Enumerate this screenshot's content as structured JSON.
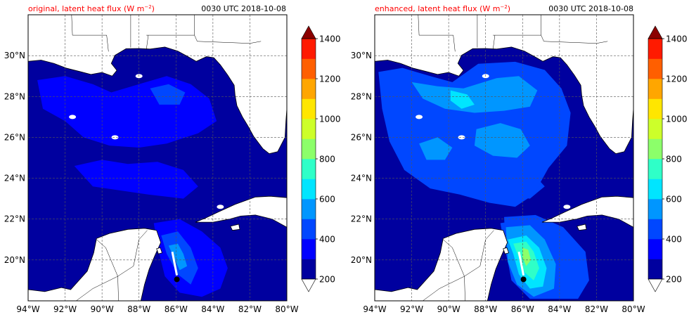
{
  "colors": {
    "levels": [
      "#00009f",
      "#0000ff",
      "#0047ff",
      "#0096ff",
      "#00e5ff",
      "#2fffc8",
      "#8cff6a",
      "#cdff2a",
      "#ffe600",
      "#ffa600",
      "#ff5f00",
      "#ff1a00",
      "#b40000"
    ],
    "over": "#8b0000",
    "title_red": "#ff0000",
    "land": "#ffffff",
    "coast": "#000000",
    "grid": "#555555"
  },
  "panels": [
    {
      "id": "original",
      "title_main": "original, latent heat flux (W m",
      "title_sup": "−2",
      "title_close": ")",
      "time_label": "0030 UTC 2018-10-08",
      "enhanced": false
    },
    {
      "id": "enhanced",
      "title_main": "enhanced, latent heat flux (W m",
      "title_sup": "−2",
      "title_close": ")",
      "time_label": "0030 UTC 2018-10-08",
      "enhanced": true
    }
  ],
  "axes": {
    "lon_ticks": [
      -94,
      -92,
      -90,
      -88,
      -86,
      -84,
      -82,
      -80
    ],
    "lon_labels": [
      "94°W",
      "92°W",
      "90°W",
      "88°W",
      "86°W",
      "84°W",
      "82°W",
      "80°W"
    ],
    "lat_ticks": [
      20,
      22,
      24,
      26,
      28,
      30
    ],
    "lat_labels": [
      "20°N",
      "22°N",
      "24°N",
      "26°N",
      "28°N",
      "30°N"
    ],
    "lon_range": [
      -94,
      -80
    ],
    "lat_range": [
      18,
      32
    ]
  },
  "colorbar": {
    "tick_values": [
      200,
      400,
      600,
      800,
      1000,
      1200,
      1400
    ],
    "tick_labels": [
      "200",
      "400",
      "600",
      "800",
      "1000",
      "1200",
      "1400"
    ],
    "level_min": 200,
    "level_step": 100,
    "n_levels": 13,
    "extend": "both"
  }
}
